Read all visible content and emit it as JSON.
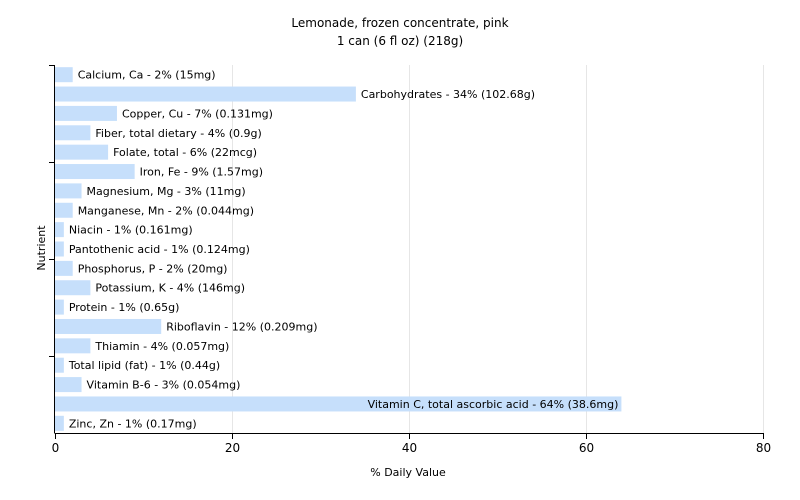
{
  "chart_data": {
    "type": "bar",
    "orientation": "horizontal",
    "title": "Lemonade, frozen concentrate, pink",
    "subtitle": "1 can (6 fl oz) (218g)",
    "xlabel": "% Daily Value",
    "ylabel": "Nutrient",
    "xlim": [
      0,
      80
    ],
    "xticks": [
      0,
      20,
      40,
      60,
      80
    ],
    "grid": true,
    "bar_color": "#c6dffb",
    "categories": [
      "Calcium, Ca",
      "Carbohydrates",
      "Copper, Cu",
      "Fiber, total dietary",
      "Folate, total",
      "Iron, Fe",
      "Magnesium, Mg",
      "Manganese, Mn",
      "Niacin",
      "Pantothenic acid",
      "Phosphorus, P",
      "Potassium, K",
      "Protein",
      "Riboflavin",
      "Thiamin",
      "Total lipid (fat)",
      "Vitamin B-6",
      "Vitamin C, total ascorbic acid",
      "Zinc, Zn"
    ],
    "values": [
      2,
      34,
      7,
      4,
      6,
      9,
      3,
      2,
      1,
      1,
      2,
      4,
      1,
      12,
      4,
      1,
      3,
      64,
      1
    ],
    "labels": [
      "Calcium, Ca - 2% (15mg)",
      "Carbohydrates - 34% (102.68g)",
      "Copper, Cu - 7% (0.131mg)",
      "Fiber, total dietary - 4% (0.9g)",
      "Folate, total - 6% (22mcg)",
      "Iron, Fe - 9% (1.57mg)",
      "Magnesium, Mg - 3% (11mg)",
      "Manganese, Mn - 2% (0.044mg)",
      "Niacin - 1% (0.161mg)",
      "Pantothenic acid - 1% (0.124mg)",
      "Phosphorus, P - 2% (20mg)",
      "Potassium, K - 4% (146mg)",
      "Protein - 1% (0.65g)",
      "Riboflavin - 12% (0.209mg)",
      "Thiamin - 4% (0.057mg)",
      "Total lipid (fat) - 1% (0.44g)",
      "Vitamin B-6 - 3% (0.054mg)",
      "Vitamin C, total ascorbic acid - 64% (38.6mg)",
      "Zinc, Zn - 1% (0.17mg)"
    ]
  }
}
